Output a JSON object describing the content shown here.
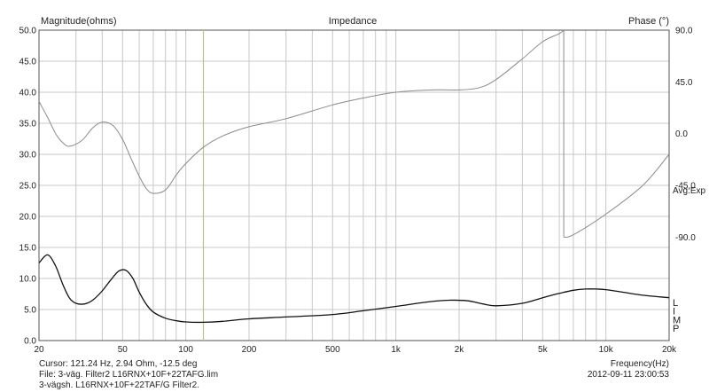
{
  "chart_data": {
    "type": "line",
    "title": "Impedance",
    "ylabel_left": "Magnitude(ohms)",
    "ylabel_right": "Phase (°)",
    "xlabel": "Frequency(Hz)",
    "x_scale": "log",
    "xlim": [
      20,
      20000
    ],
    "ylim_left": [
      0,
      50
    ],
    "ylim_right": [
      -180,
      90
    ],
    "x_ticks": [
      {
        "v": 20,
        "label": "20"
      },
      {
        "v": 50,
        "label": "50"
      },
      {
        "v": 100,
        "label": "100"
      },
      {
        "v": 200,
        "label": "200"
      },
      {
        "v": 500,
        "label": "500"
      },
      {
        "v": 1000,
        "label": "1k"
      },
      {
        "v": 2000,
        "label": "2k"
      },
      {
        "v": 5000,
        "label": "5k"
      },
      {
        "v": 10000,
        "label": "10k"
      },
      {
        "v": 20000,
        "label": "20k"
      }
    ],
    "y_ticks_left": [
      "0.0",
      "5.0",
      "10.0",
      "15.0",
      "20.0",
      "25.0",
      "30.0",
      "35.0",
      "40.0",
      "45.0",
      "50.0"
    ],
    "y_ticks_right": [
      {
        "v": 90,
        "label": "90.0"
      },
      {
        "v": 45,
        "label": "45.0"
      },
      {
        "v": 0,
        "label": "0.0"
      },
      {
        "v": -45,
        "label": "-45.0"
      },
      {
        "v": -90,
        "label": "-90.0"
      }
    ],
    "avg_label": "Avg:Exp",
    "side_letters": [
      "L",
      "I",
      "M",
      "P"
    ],
    "cursor": {
      "x": 121.24
    },
    "grid": true,
    "series": [
      {
        "role": "magnitude",
        "axis": "left",
        "color": "#111111",
        "x": [
          20,
          22,
          24,
          26,
          28,
          30,
          33,
          36,
          40,
          44,
          48,
          52,
          56,
          60,
          65,
          70,
          80,
          90,
          100,
          121,
          150,
          200,
          300,
          500,
          700,
          1000,
          1400,
          1800,
          2200,
          2600,
          3000,
          4000,
          5000,
          6000,
          7000,
          8000,
          9000,
          10000,
          12000,
          15000,
          20000
        ],
        "y": [
          12.5,
          13.8,
          12.0,
          9.0,
          6.8,
          6.0,
          5.9,
          6.5,
          8.0,
          9.8,
          11.2,
          11.3,
          10.0,
          7.8,
          5.8,
          4.6,
          3.6,
          3.2,
          3.0,
          2.94,
          3.1,
          3.5,
          3.8,
          4.2,
          4.8,
          5.5,
          6.2,
          6.5,
          6.4,
          5.9,
          5.6,
          6.0,
          6.9,
          7.6,
          8.1,
          8.3,
          8.3,
          8.2,
          7.8,
          7.3,
          6.9
        ]
      },
      {
        "role": "phase",
        "axis": "right",
        "color": "#8a8a8a",
        "x": [
          20,
          22,
          24,
          26,
          28,
          32,
          36,
          40,
          45,
          50,
          55,
          60,
          65,
          70,
          80,
          90,
          100,
          121,
          150,
          200,
          300,
          500,
          700,
          1000,
          1500,
          2000,
          2500,
          3000,
          4000,
          5000,
          6000,
          6300,
          6300,
          7000,
          10000,
          15000,
          20000
        ],
        "y": [
          28,
          14,
          0,
          -8,
          -11,
          -6,
          5,
          10,
          7,
          -5,
          -22,
          -37,
          -48,
          -52,
          -49,
          -36,
          -26,
          -12,
          -2,
          6,
          13,
          25,
          31,
          36,
          38,
          38,
          40,
          47,
          65,
          80,
          87,
          90,
          -90,
          -88,
          -70,
          -45,
          -18
        ]
      }
    ]
  },
  "footer": {
    "cursor_text": "Cursor: 121.24 Hz, 2.94 Ohm, -12.5 deg",
    "file_text": "File: 3-väg. Filter2 L16RNX+10F+22TAFG.lim",
    "desc_text": "3-vägsh. L16RNX+10F+22TAF/G Filter2.",
    "timestamp": "2012-09-11 23:00:53"
  }
}
